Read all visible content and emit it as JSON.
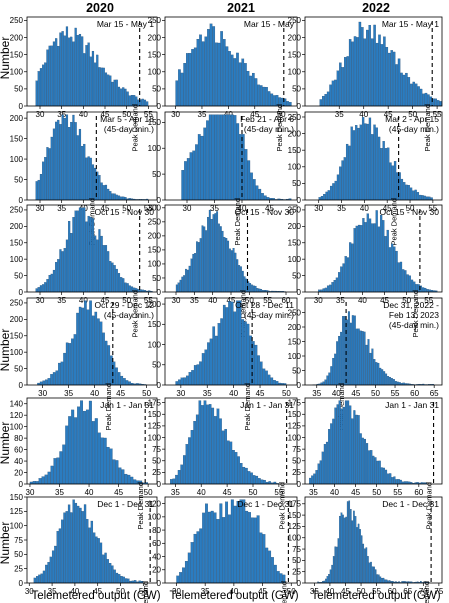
{
  "figure": {
    "column_titles": [
      "2020",
      "2021",
      "2022"
    ],
    "ylabel": "Number",
    "xlabel": "Telemetered output (GW)",
    "peak_label": "Peak Demand"
  },
  "chart_data": {
    "type": "histogram-grid",
    "bar_color": "#2b7cc0",
    "bar_edge_color": "#173f66",
    "rows": 6,
    "cols": 3,
    "panels": [
      {
        "row": 0,
        "col": 0,
        "period": "Mar 15 - May 1",
        "xlim": [
          27,
          57
        ],
        "ylim": [
          0,
          260
        ],
        "xticks": [
          30,
          35,
          40,
          45,
          50,
          55
        ],
        "yticks": [
          0,
          50,
          100,
          150,
          200,
          250
        ],
        "peak": 53.0,
        "profile": {
          "type": "skew",
          "mode": 35.5,
          "sl": 4.5,
          "sr": 8.0,
          "peak": 210,
          "lo": 29,
          "hi": 55
        }
      },
      {
        "row": 0,
        "col": 1,
        "period": "Mar 15 - May",
        "xlim": [
          28,
          53
        ],
        "ylim": [
          0,
          260
        ],
        "xticks": [
          30,
          35,
          40,
          45,
          50
        ],
        "yticks": [
          0,
          50,
          100,
          150,
          200,
          250
        ],
        "peak": 50.5,
        "profile": {
          "type": "skew",
          "mode": 36.0,
          "sl": 4.0,
          "sr": 6.5,
          "peak": 220,
          "lo": 30,
          "hi": 52
        }
      },
      {
        "row": 0,
        "col": 2,
        "period": "Mar 15 - May 1",
        "xlim": [
          28,
          56
        ],
        "ylim": [
          0,
          260
        ],
        "xticks": [
          35,
          40,
          45,
          50,
          55
        ],
        "yticks": [
          0,
          50,
          100,
          150,
          200,
          250
        ],
        "peak": 54.0,
        "profile": {
          "type": "skew",
          "mode": 40.0,
          "sl": 4.0,
          "sr": 6.5,
          "peak": 225,
          "lo": 31,
          "hi": 56
        }
      },
      {
        "row": 1,
        "col": 0,
        "period": "Mar 5 - Apr 18",
        "sub": "(45-day min.)",
        "xlim": [
          27,
          57
        ],
        "ylim": [
          0,
          215
        ],
        "xticks": [
          30,
          35,
          40,
          45,
          50,
          55
        ],
        "yticks": [
          0,
          50,
          100,
          150,
          200
        ],
        "peak": 43.0,
        "profile": {
          "type": "skew",
          "mode": 35.5,
          "sl": 3.5,
          "sr": 5.0,
          "peak": 205,
          "lo": 29,
          "hi": 55
        }
      },
      {
        "row": 1,
        "col": 1,
        "period": "Feb 21 - Apr 6",
        "sub": "(45-day min.)",
        "xlim": [
          26,
          50
        ],
        "ylim": [
          0,
          170
        ],
        "xticks": [
          30,
          35,
          40,
          45
        ],
        "yticks": [
          0,
          50,
          100,
          150
        ],
        "peak": 40.0,
        "profile": {
          "type": "bimodal",
          "m1": 33.0,
          "s1": 3.0,
          "a1": 120,
          "m2": 38.0,
          "s2": 2.5,
          "a2": 160,
          "lo": 29,
          "hi": 49
        }
      },
      {
        "row": 1,
        "col": 2,
        "period": "Mar 2 - Apr 15",
        "sub": "(45-day min.)",
        "xlim": [
          27,
          57
        ],
        "ylim": [
          0,
          265
        ],
        "xticks": [
          30,
          35,
          40,
          45,
          50,
          55
        ],
        "yticks": [
          0,
          50,
          100,
          150,
          200,
          250
        ],
        "peak": 47.5,
        "profile": {
          "type": "skew",
          "mode": 39.5,
          "sl": 3.5,
          "sr": 5.5,
          "peak": 240,
          "lo": 30,
          "hi": 55
        }
      },
      {
        "row": 2,
        "col": 0,
        "period": "Oct 15 - Nov 30",
        "xlim": [
          27,
          57
        ],
        "ylim": [
          0,
          265
        ],
        "xticks": [
          30,
          35,
          40,
          45,
          50,
          55
        ],
        "yticks": [
          0,
          50,
          100,
          150,
          200,
          250
        ],
        "peak": 53.0,
        "profile": {
          "type": "skew",
          "mode": 39.5,
          "sl": 4.0,
          "sr": 5.0,
          "peak": 240,
          "lo": 29,
          "hi": 56
        }
      },
      {
        "row": 2,
        "col": 1,
        "period": "Oct 15 - Nov 30",
        "xlim": [
          27,
          63
        ],
        "ylim": [
          0,
          310
        ],
        "xticks": [
          30,
          35,
          40,
          45,
          50,
          55,
          60
        ],
        "yticks": [
          0,
          50,
          100,
          150,
          200,
          250,
          300
        ],
        "peak": 49.5,
        "profile": {
          "type": "skew",
          "mode": 40.0,
          "sl": 4.5,
          "sr": 5.0,
          "peak": 270,
          "lo": 30,
          "hi": 60
        }
      },
      {
        "row": 2,
        "col": 2,
        "period": "Oct 15 - Nov 30",
        "xlim": [
          27,
          58
        ],
        "ylim": [
          0,
          265
        ],
        "xticks": [
          30,
          35,
          40,
          45,
          50,
          55
        ],
        "yticks": [
          0,
          50,
          100,
          150,
          200,
          250
        ],
        "peak": 53.0,
        "profile": {
          "type": "skew",
          "mode": 41.5,
          "sl": 4.0,
          "sr": 5.0,
          "peak": 240,
          "lo": 30,
          "hi": 57
        }
      },
      {
        "row": 3,
        "col": 0,
        "period": "Oct 29 - Dec 12",
        "sub": "(45-day min.)",
        "xlim": [
          27,
          52
        ],
        "ylim": [
          0,
          265
        ],
        "xticks": [
          30,
          35,
          40,
          45,
          50
        ],
        "yticks": [
          0,
          50,
          100,
          150,
          200,
          250
        ],
        "peak": 43.5,
        "profile": {
          "type": "skew",
          "mode": 39.0,
          "sl": 3.5,
          "sr": 3.0,
          "peak": 240,
          "lo": 29,
          "hi": 50
        }
      },
      {
        "row": 3,
        "col": 1,
        "period": "Oct 28 - Dec 11",
        "sub": "(45-day min.)",
        "xlim": [
          27,
          52
        ],
        "ylim": [
          0,
          215
        ],
        "xticks": [
          30,
          35,
          40,
          45,
          50
        ],
        "yticks": [
          0,
          50,
          100,
          150,
          200
        ],
        "peak": 43.5,
        "profile": {
          "type": "skew",
          "mode": 40.5,
          "sl": 4.5,
          "sr": 3.0,
          "peak": 195,
          "lo": 29,
          "hi": 50
        }
      },
      {
        "row": 3,
        "col": 2,
        "period": "Dec 31, 2022 -",
        "sub": "Feb 13, 2023",
        "sub2": "(45-day min.)",
        "xlim": [
          32,
          67
        ],
        "ylim": [
          0,
          300
        ],
        "xticks": [
          35,
          40,
          45,
          50,
          55,
          60,
          65
        ],
        "yticks": [
          0,
          50,
          100,
          150,
          200,
          250
        ],
        "peak": 42.5,
        "profile": {
          "type": "skew",
          "mode": 43.0,
          "sl": 2.5,
          "sr": 5.0,
          "peak": 245,
          "lo": 34,
          "hi": 65
        }
      },
      {
        "row": 4,
        "col": 0,
        "period": "Jan 1 - Jan 31",
        "xlim": [
          29.5,
          51.5
        ],
        "ylim": [
          0,
          150
        ],
        "xticks": [
          30,
          35,
          40,
          45,
          50
        ],
        "yticks": [
          0,
          20,
          40,
          60,
          80,
          100,
          120,
          140
        ],
        "peak": 49.5,
        "profile": {
          "type": "skew",
          "mode": 39.0,
          "sl": 3.0,
          "sr": 3.5,
          "peak": 140,
          "lo": 30,
          "hi": 50
        }
      },
      {
        "row": 4,
        "col": 1,
        "period": "Jan 1 - Jan 31",
        "xlim": [
          33,
          58.5
        ],
        "ylim": [
          0,
          185
        ],
        "xticks": [
          35,
          40,
          45,
          50,
          55
        ],
        "yticks": [
          0,
          25,
          50,
          75,
          100,
          125,
          150,
          175
        ],
        "peak": 56.5,
        "profile": {
          "type": "skew",
          "mode": 40.5,
          "sl": 2.5,
          "sr": 4.5,
          "peak": 175,
          "lo": 34,
          "hi": 55
        }
      },
      {
        "row": 4,
        "col": 2,
        "period": "Jan 1 - Jan 31",
        "xlim": [
          33,
          65.5
        ],
        "ylim": [
          0,
          185
        ],
        "xticks": [
          35,
          40,
          45,
          50,
          55,
          60
        ],
        "yticks": [
          0,
          25,
          50,
          75,
          100,
          125,
          150,
          175
        ],
        "peak": 63.5,
        "profile": {
          "type": "skew",
          "mode": 41.5,
          "sl": 3.0,
          "sr": 5.5,
          "peak": 175,
          "lo": 34,
          "hi": 62
        }
      },
      {
        "row": 5,
        "col": 0,
        "period": "Dec 1 - Dec 31",
        "xlim": [
          29.5,
          58
        ],
        "ylim": [
          0,
          150
        ],
        "xticks": [
          30,
          35,
          40,
          45,
          50,
          55
        ],
        "yticks": [
          0,
          25,
          50,
          75,
          100,
          125,
          150
        ],
        "peak": 56.5,
        "profile": {
          "type": "skew",
          "mode": 40.0,
          "sl": 3.5,
          "sr": 4.5,
          "peak": 140,
          "lo": 31,
          "hi": 55
        }
      },
      {
        "row": 5,
        "col": 1,
        "period": "Dec 1 - Dec 31",
        "xlim": [
          28,
          51
        ],
        "ylim": [
          0,
          130
        ],
        "xticks": [
          30,
          35,
          40,
          45,
          50
        ],
        "yticks": [
          0,
          20,
          40,
          60,
          80,
          100,
          120
        ],
        "peak": 49.5,
        "profile": {
          "type": "bimodal",
          "m1": 35.5,
          "s1": 2.5,
          "a1": 95,
          "m2": 42.0,
          "s2": 3.0,
          "a2": 120,
          "lo": 30,
          "hi": 49
        }
      },
      {
        "row": 5,
        "col": 2,
        "period": "Dec 1 - Dec 31",
        "xlim": [
          32,
          76
        ],
        "ylim": [
          0,
          190
        ],
        "xticks": [
          35,
          40,
          45,
          50,
          55,
          60,
          65,
          70,
          75
        ],
        "yticks": [
          0,
          25,
          50,
          75,
          100,
          125,
          150,
          175
        ],
        "peak": 72.5,
        "profile": {
          "type": "skew",
          "mode": 45.0,
          "sl": 2.5,
          "sr": 5.0,
          "peak": 165,
          "lo": 36,
          "hi": 72
        }
      }
    ]
  }
}
